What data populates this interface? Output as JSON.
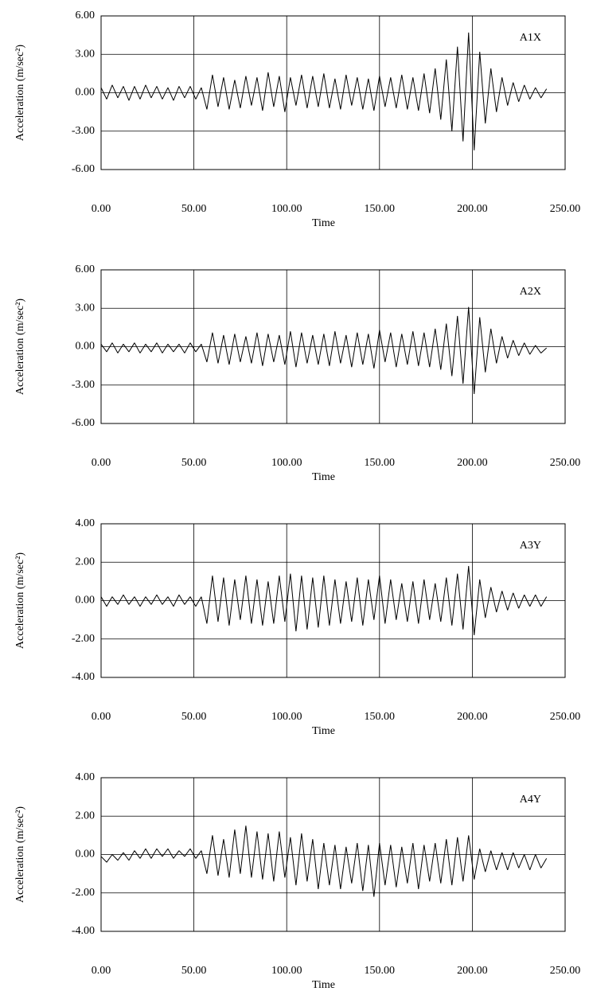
{
  "chart_data": [
    {
      "type": "line",
      "annotation": "A1X",
      "xlabel": "Time",
      "ylabel": "Acceleration (m/sec²)",
      "color": "#000000",
      "grid": true,
      "xlim": [
        0,
        250
      ],
      "ylim": [
        -6,
        6
      ],
      "xticks": [
        {
          "value": 0,
          "label": "0.00"
        },
        {
          "value": 50,
          "label": "50.00"
        },
        {
          "value": 100,
          "label": "100.00"
        },
        {
          "value": 150,
          "label": "150.00"
        },
        {
          "value": 200,
          "label": "200.00"
        },
        {
          "value": 250,
          "label": "250.00"
        }
      ],
      "yticks": [
        {
          "value": 6,
          "label": "6.00"
        },
        {
          "value": 3,
          "label": "3.00"
        },
        {
          "value": 0,
          "label": "0.00"
        },
        {
          "value": -3,
          "label": "-3.00"
        },
        {
          "value": -6,
          "label": "-6.00"
        }
      ],
      "x": [
        0,
        3,
        6,
        9,
        12,
        15,
        18,
        21,
        24,
        27,
        30,
        33,
        36,
        39,
        42,
        45,
        48,
        51,
        54,
        57,
        60,
        63,
        66,
        69,
        72,
        75,
        78,
        81,
        84,
        87,
        90,
        93,
        96,
        99,
        102,
        105,
        108,
        111,
        114,
        117,
        120,
        123,
        126,
        129,
        132,
        135,
        138,
        141,
        144,
        147,
        150,
        153,
        156,
        159,
        162,
        165,
        168,
        171,
        174,
        177,
        180,
        183,
        186,
        189,
        192,
        195,
        198,
        201,
        204,
        207,
        210,
        213,
        216,
        219,
        222,
        225,
        228,
        231,
        234,
        237,
        240
      ],
      "values": [
        0.4,
        -0.5,
        0.6,
        -0.4,
        0.5,
        -0.6,
        0.5,
        -0.5,
        0.6,
        -0.4,
        0.5,
        -0.5,
        0.4,
        -0.6,
        0.5,
        -0.4,
        0.5,
        -0.5,
        0.4,
        -1.3,
        1.4,
        -1.1,
        1.2,
        -1.3,
        1.0,
        -1.2,
        1.3,
        -1.0,
        1.2,
        -1.4,
        1.6,
        -1.1,
        1.3,
        -1.5,
        1.2,
        -1.0,
        1.4,
        -1.2,
        1.3,
        -1.1,
        1.5,
        -1.2,
        1.1,
        -1.3,
        1.4,
        -1.0,
        1.2,
        -1.3,
        1.1,
        -1.4,
        1.3,
        -1.1,
        1.2,
        -1.2,
        1.4,
        -1.3,
        1.2,
        -1.4,
        1.5,
        -1.6,
        1.9,
        -2.1,
        2.6,
        -3.0,
        3.6,
        -3.8,
        4.7,
        -4.5,
        3.2,
        -2.4,
        1.9,
        -1.5,
        1.2,
        -1.0,
        0.8,
        -0.7,
        0.6,
        -0.5,
        0.4,
        -0.4,
        0.3
      ]
    },
    {
      "type": "line",
      "annotation": "A2X",
      "xlabel": "Time",
      "ylabel": "Acceleration (m/sec²)",
      "color": "#000000",
      "grid": true,
      "xlim": [
        0,
        250
      ],
      "ylim": [
        -6,
        6
      ],
      "xticks": [
        {
          "value": 0,
          "label": "0.00"
        },
        {
          "value": 50,
          "label": "50.00"
        },
        {
          "value": 100,
          "label": "100.00"
        },
        {
          "value": 150,
          "label": "150.00"
        },
        {
          "value": 200,
          "label": "200.00"
        },
        {
          "value": 250,
          "label": "250.00"
        }
      ],
      "yticks": [
        {
          "value": 6,
          "label": "6.00"
        },
        {
          "value": 3,
          "label": "3.00"
        },
        {
          "value": 0,
          "label": "0.00"
        },
        {
          "value": -3,
          "label": "-3.00"
        },
        {
          "value": -6,
          "label": "-6.00"
        }
      ],
      "x": [
        0,
        3,
        6,
        9,
        12,
        15,
        18,
        21,
        24,
        27,
        30,
        33,
        36,
        39,
        42,
        45,
        48,
        51,
        54,
        57,
        60,
        63,
        66,
        69,
        72,
        75,
        78,
        81,
        84,
        87,
        90,
        93,
        96,
        99,
        102,
        105,
        108,
        111,
        114,
        117,
        120,
        123,
        126,
        129,
        132,
        135,
        138,
        141,
        144,
        147,
        150,
        153,
        156,
        159,
        162,
        165,
        168,
        171,
        174,
        177,
        180,
        183,
        186,
        189,
        192,
        195,
        198,
        201,
        204,
        207,
        210,
        213,
        216,
        219,
        222,
        225,
        228,
        231,
        234,
        237,
        240
      ],
      "values": [
        0.2,
        -0.4,
        0.3,
        -0.5,
        0.2,
        -0.4,
        0.3,
        -0.5,
        0.2,
        -0.4,
        0.3,
        -0.5,
        0.2,
        -0.4,
        0.2,
        -0.5,
        0.3,
        -0.4,
        0.2,
        -1.2,
        1.1,
        -1.3,
        0.9,
        -1.4,
        1.0,
        -1.2,
        0.8,
        -1.3,
        1.1,
        -1.5,
        1.0,
        -1.2,
        0.9,
        -1.4,
        1.2,
        -1.6,
        1.1,
        -1.3,
        0.9,
        -1.4,
        1.0,
        -1.5,
        1.2,
        -1.3,
        0.9,
        -1.6,
        1.1,
        -1.4,
        1.0,
        -1.7,
        1.3,
        -1.2,
        1.1,
        -1.6,
        1.0,
        -1.4,
        1.2,
        -1.5,
        1.1,
        -1.6,
        1.4,
        -1.8,
        1.8,
        -2.3,
        2.4,
        -2.9,
        3.1,
        -3.7,
        2.3,
        -2.0,
        1.4,
        -1.3,
        0.8,
        -0.9,
        0.5,
        -0.7,
        0.3,
        -0.6,
        0.1,
        -0.5,
        -0.1
      ]
    },
    {
      "type": "line",
      "annotation": "A3Y",
      "xlabel": "Time",
      "ylabel": "Acceleration (m/sec²)",
      "color": "#000000",
      "grid": true,
      "xlim": [
        0,
        250
      ],
      "ylim": [
        -4,
        4
      ],
      "xticks": [
        {
          "value": 0,
          "label": "0.00"
        },
        {
          "value": 50,
          "label": "50.00"
        },
        {
          "value": 100,
          "label": "100.00"
        },
        {
          "value": 150,
          "label": "150.00"
        },
        {
          "value": 200,
          "label": "200.00"
        },
        {
          "value": 250,
          "label": "250.00"
        }
      ],
      "yticks": [
        {
          "value": 4,
          "label": "4.00"
        },
        {
          "value": 2,
          "label": "2.00"
        },
        {
          "value": 0,
          "label": "0.00"
        },
        {
          "value": -2,
          "label": "-2.00"
        },
        {
          "value": -4,
          "label": "-4.00"
        }
      ],
      "x": [
        0,
        3,
        6,
        9,
        12,
        15,
        18,
        21,
        24,
        27,
        30,
        33,
        36,
        39,
        42,
        45,
        48,
        51,
        54,
        57,
        60,
        63,
        66,
        69,
        72,
        75,
        78,
        81,
        84,
        87,
        90,
        93,
        96,
        99,
        102,
        105,
        108,
        111,
        114,
        117,
        120,
        123,
        126,
        129,
        132,
        135,
        138,
        141,
        144,
        147,
        150,
        153,
        156,
        159,
        162,
        165,
        168,
        171,
        174,
        177,
        180,
        183,
        186,
        189,
        192,
        195,
        198,
        201,
        204,
        207,
        210,
        213,
        216,
        219,
        222,
        225,
        228,
        231,
        234,
        237,
        240
      ],
      "values": [
        0.2,
        -0.3,
        0.2,
        -0.2,
        0.3,
        -0.2,
        0.2,
        -0.3,
        0.2,
        -0.2,
        0.3,
        -0.2,
        0.2,
        -0.3,
        0.3,
        -0.2,
        0.2,
        -0.3,
        0.2,
        -1.2,
        1.3,
        -1.1,
        1.2,
        -1.3,
        1.1,
        -1.0,
        1.3,
        -1.2,
        1.1,
        -1.3,
        1.0,
        -1.2,
        1.3,
        -1.1,
        1.4,
        -1.6,
        1.3,
        -1.5,
        1.2,
        -1.4,
        1.3,
        -1.3,
        1.1,
        -1.2,
        1.0,
        -1.1,
        1.2,
        -1.3,
        1.1,
        -1.0,
        1.3,
        -1.2,
        1.1,
        -1.0,
        0.9,
        -1.1,
        1.0,
        -1.2,
        1.1,
        -1.0,
        0.9,
        -1.1,
        1.2,
        -1.3,
        1.4,
        -1.5,
        1.8,
        -1.8,
        1.1,
        -0.9,
        0.7,
        -0.6,
        0.5,
        -0.5,
        0.4,
        -0.4,
        0.3,
        -0.3,
        0.3,
        -0.3,
        0.2
      ]
    },
    {
      "type": "line",
      "annotation": "A4Y",
      "xlabel": "Time",
      "ylabel": "Acceleration (m/sec²)",
      "color": "#000000",
      "grid": true,
      "xlim": [
        0,
        250
      ],
      "ylim": [
        -4,
        4
      ],
      "xticks": [
        {
          "value": 0,
          "label": "0.00"
        },
        {
          "value": 50,
          "label": "50.00"
        },
        {
          "value": 100,
          "label": "100.00"
        },
        {
          "value": 150,
          "label": "150.00"
        },
        {
          "value": 200,
          "label": "200.00"
        },
        {
          "value": 250,
          "label": "250.00"
        }
      ],
      "yticks": [
        {
          "value": 4,
          "label": "4.00"
        },
        {
          "value": 2,
          "label": "2.00"
        },
        {
          "value": 0,
          "label": "0.00"
        },
        {
          "value": -2,
          "label": "-2.00"
        },
        {
          "value": -4,
          "label": "-4.00"
        }
      ],
      "x": [
        0,
        3,
        6,
        9,
        12,
        15,
        18,
        21,
        24,
        27,
        30,
        33,
        36,
        39,
        42,
        45,
        48,
        51,
        54,
        57,
        60,
        63,
        66,
        69,
        72,
        75,
        78,
        81,
        84,
        87,
        90,
        93,
        96,
        99,
        102,
        105,
        108,
        111,
        114,
        117,
        120,
        123,
        126,
        129,
        132,
        135,
        138,
        141,
        144,
        147,
        150,
        153,
        156,
        159,
        162,
        165,
        168,
        171,
        174,
        177,
        180,
        183,
        186,
        189,
        192,
        195,
        198,
        201,
        204,
        207,
        210,
        213,
        216,
        219,
        222,
        225,
        228,
        231,
        234,
        237,
        240
      ],
      "values": [
        -0.1,
        -0.4,
        0.0,
        -0.3,
        0.1,
        -0.3,
        0.2,
        -0.2,
        0.3,
        -0.2,
        0.3,
        -0.1,
        0.3,
        -0.2,
        0.2,
        -0.1,
        0.3,
        -0.2,
        0.2,
        -1.0,
        1.0,
        -1.1,
        0.8,
        -1.2,
        1.3,
        -1.0,
        1.5,
        -1.2,
        1.2,
        -1.3,
        1.1,
        -1.4,
        1.2,
        -1.2,
        0.9,
        -1.6,
        1.1,
        -1.4,
        0.8,
        -1.8,
        0.6,
        -1.6,
        0.5,
        -1.8,
        0.4,
        -1.5,
        0.6,
        -1.9,
        0.5,
        -2.2,
        0.6,
        -1.6,
        0.5,
        -1.7,
        0.4,
        -1.5,
        0.6,
        -1.8,
        0.5,
        -1.4,
        0.6,
        -1.5,
        0.8,
        -1.6,
        0.9,
        -1.4,
        1.0,
        -1.3,
        0.3,
        -0.9,
        0.2,
        -0.8,
        0.1,
        -0.8,
        0.1,
        -0.7,
        0.0,
        -0.8,
        0.0,
        -0.7,
        -0.2
      ]
    }
  ]
}
